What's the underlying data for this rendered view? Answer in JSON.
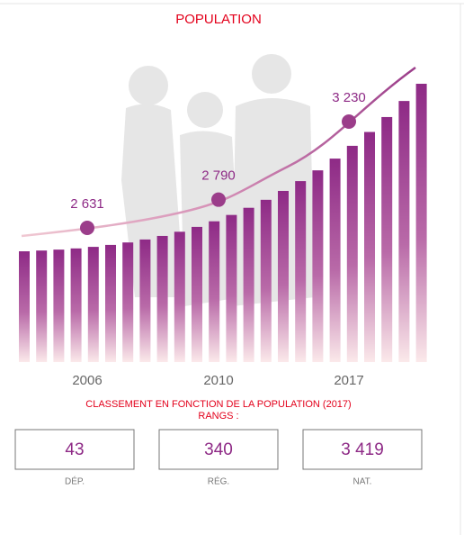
{
  "chart_data": {
    "type": "line",
    "title": "POPULATION",
    "categories": [
      "2006",
      "2010",
      "2017"
    ],
    "values": [
      2631,
      2790,
      3230
    ],
    "value_labels": [
      "2 631",
      "2 790",
      "3 230"
    ],
    "color": "#9b3d8a"
  },
  "ranking": {
    "title": "CLASSEMENT EN FONCTION DE LA POPULATION (2017)",
    "subtitle": "RANGS :",
    "boxes": [
      {
        "value": "43",
        "label": "DÉP."
      },
      {
        "value": "340",
        "label": "RÉG."
      },
      {
        "value": "3 419",
        "label": "NAT."
      }
    ]
  }
}
